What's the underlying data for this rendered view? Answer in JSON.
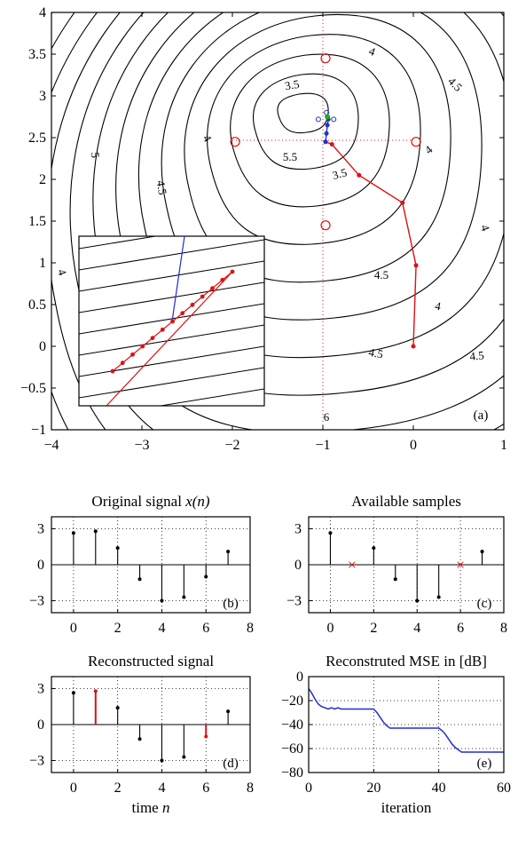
{
  "chart_data": [
    {
      "type": "contour",
      "panel_label": "(a)",
      "xlim": [
        -4,
        1
      ],
      "ylim": [
        -1,
        4
      ],
      "xticks": [
        "−4",
        "−3",
        "−2",
        "−1",
        "0",
        "1"
      ],
      "yticks": [
        "−1",
        "−0.5",
        "0",
        "0.5",
        "1",
        "1.5",
        "2",
        "2.5",
        "3",
        "3.5",
        "4"
      ],
      "contour_labels": [
        "3.5",
        "4",
        "4.5",
        "5",
        "3.5",
        "4",
        "4.5",
        "5.5",
        "4",
        "3.5",
        "4",
        "4.5",
        "4",
        "4.5",
        "4.5",
        "4",
        "6"
      ],
      "minimum": [
        -0.95,
        2.75
      ],
      "red_path": [
        [
          0,
          0
        ],
        [
          0.03,
          0.97
        ],
        [
          -0.12,
          1.72
        ],
        [
          -0.6,
          2.05
        ],
        [
          -0.9,
          2.42
        ],
        [
          -0.97,
          2.45
        ]
      ],
      "blue_path": [
        [
          -0.97,
          2.45
        ],
        [
          -0.96,
          2.55
        ],
        [
          -0.95,
          2.65
        ],
        [
          -0.94,
          2.72
        ]
      ],
      "circle_markers": [
        [
          -0.97,
          3.45
        ],
        [
          -1.97,
          2.45
        ],
        [
          0.03,
          2.45
        ],
        [
          -0.97,
          1.45
        ]
      ],
      "grid": "dotted lines at x = -1 and y = 2.45",
      "inset": "zoomed view of the descent path near the minimum"
    },
    {
      "type": "stem",
      "title": "Original signal x(n)",
      "panel_label": "(b)",
      "n": [
        0,
        1,
        2,
        3,
        4,
        5,
        6,
        7
      ],
      "values": [
        2.65,
        2.8,
        1.4,
        -1.2,
        -3.0,
        -2.7,
        -1.0,
        1.1
      ],
      "xlim": [
        -1,
        8
      ],
      "ylim": [
        -4,
        4
      ],
      "xticks": [
        "0",
        "2",
        "4",
        "6",
        "8"
      ],
      "yticks": [
        "3",
        "0",
        "−3"
      ]
    },
    {
      "type": "stem",
      "title": "Available samples",
      "panel_label": "(c)",
      "n": [
        0,
        2,
        3,
        4,
        5,
        7
      ],
      "values": [
        2.65,
        1.4,
        -1.2,
        -3.0,
        -2.7,
        1.1
      ],
      "missing_n": [
        1,
        6
      ],
      "missing_marker": "×",
      "xlim": [
        -1,
        8
      ],
      "ylim": [
        -4,
        4
      ],
      "xticks": [
        "0",
        "2",
        "4",
        "6",
        "8"
      ],
      "yticks": [
        "3",
        "0",
        "−3"
      ]
    },
    {
      "type": "stem",
      "title": "Reconstructed signal",
      "panel_label": "(d)",
      "xlabel_prefix": "time ",
      "xlabel_var": "n",
      "n": [
        0,
        1,
        2,
        3,
        4,
        5,
        6,
        7
      ],
      "values": [
        2.65,
        2.8,
        1.4,
        -1.2,
        -3.0,
        -2.7,
        -1.0,
        1.1
      ],
      "reconstructed_n": [
        1,
        6
      ],
      "xlim": [
        -1,
        8
      ],
      "ylim": [
        -4,
        4
      ],
      "xticks": [
        "0",
        "2",
        "4",
        "6",
        "8"
      ],
      "yticks": [
        "3",
        "0",
        "−3"
      ]
    },
    {
      "type": "line",
      "title": "Reconstruted MSE in [dB]",
      "panel_label": "(e)",
      "xlabel": "iteration",
      "xlim": [
        0,
        60
      ],
      "ylim": [
        -80,
        0
      ],
      "xticks": [
        "0",
        "20",
        "40",
        "60"
      ],
      "yticks": [
        "0",
        "−20",
        "−40",
        "−60",
        "−80"
      ],
      "x": [
        0,
        1,
        2,
        3,
        4,
        5,
        6,
        7,
        8,
        9,
        10,
        15,
        20,
        21,
        22,
        23,
        24,
        25,
        30,
        35,
        40,
        41,
        42,
        43,
        44,
        45,
        46,
        47,
        48,
        55,
        60
      ],
      "y": [
        -10,
        -14,
        -19,
        -23,
        -25,
        -26,
        -27,
        -26,
        -27,
        -26,
        -27,
        -27,
        -27,
        -30,
        -34,
        -38,
        -41,
        -43,
        -43,
        -43,
        -43,
        -45,
        -48,
        -52,
        -56,
        -59,
        -61,
        -63,
        -63,
        -63,
        -63
      ]
    }
  ]
}
